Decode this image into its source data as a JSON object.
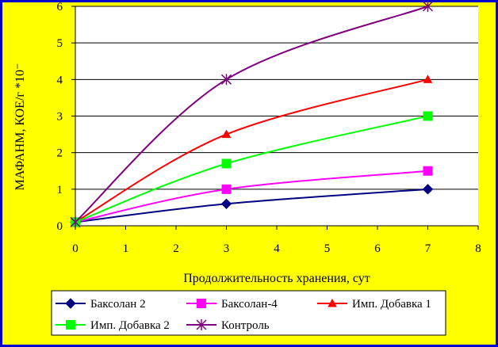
{
  "chart_data": {
    "type": "line",
    "title": "",
    "xlabel": "Продолжительность хранения, сут",
    "ylabel": "МАФАНМ, КОЕ/г *10⁻",
    "xlim": [
      0,
      8
    ],
    "ylim": [
      0,
      6
    ],
    "x_ticks": [
      "0",
      "1",
      "2",
      "3",
      "4",
      "5",
      "6",
      "7",
      "8"
    ],
    "y_ticks": [
      "0",
      "1",
      "2",
      "3",
      "4",
      "5",
      "6"
    ],
    "grid": "horizontal",
    "legend_position": "bottom",
    "series": [
      {
        "name": "Баксолан 2",
        "color": "#000080",
        "marker": "diamond",
        "points": [
          [
            0,
            0.1
          ],
          [
            3,
            0.6
          ],
          [
            7,
            1.0
          ]
        ]
      },
      {
        "name": "Баксолан-4",
        "color": "#ff00ff",
        "marker": "square",
        "points": [
          [
            0,
            0.1
          ],
          [
            3,
            1.0
          ],
          [
            7,
            1.5
          ]
        ]
      },
      {
        "name": "Имп. Добавка 1",
        "color": "#ff0000",
        "marker": "triangle",
        "points": [
          [
            0,
            0.1
          ],
          [
            3,
            2.5
          ],
          [
            7,
            4.0
          ]
        ]
      },
      {
        "name": "Имп. Добавка 2",
        "color": "#00ff00",
        "marker": "square",
        "points": [
          [
            0,
            0.1
          ],
          [
            3,
            1.7
          ],
          [
            7,
            3.0
          ]
        ]
      },
      {
        "name": "Контроль",
        "color": "#800080",
        "marker": "asterisk",
        "points": [
          [
            0,
            0.1
          ],
          [
            3,
            4.0
          ],
          [
            7,
            6.0
          ]
        ]
      }
    ]
  }
}
